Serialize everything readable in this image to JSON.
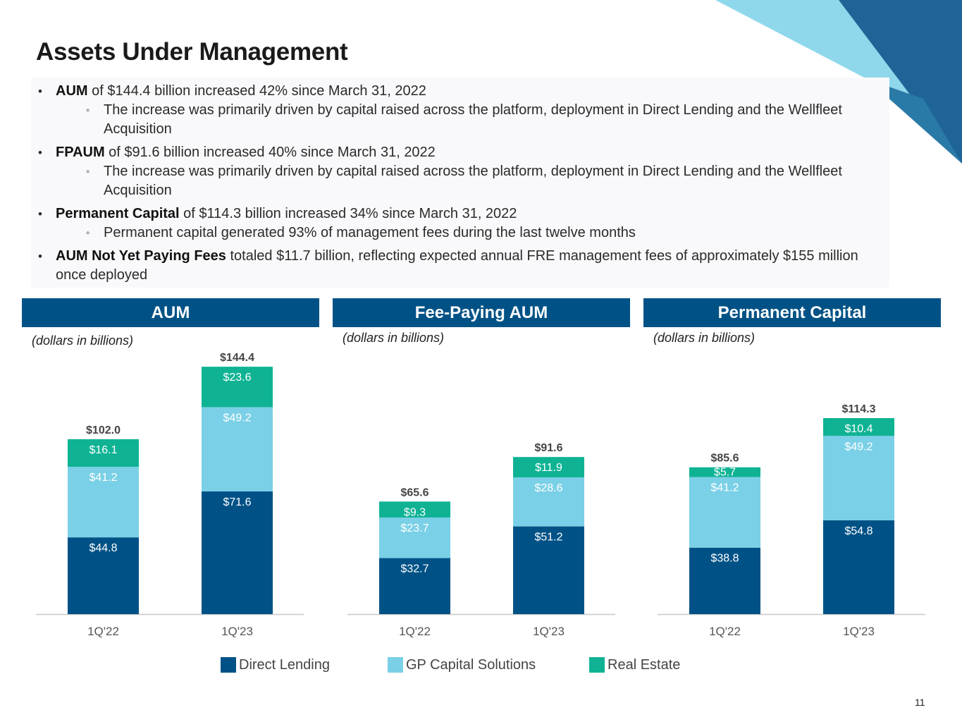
{
  "title": "Assets Under Management",
  "bullets": [
    {
      "bold": "AUM",
      "text": " of $144.4 billion increased 42% since March 31, 2022",
      "subs": [
        "The increase was primarily driven by capital raised across the platform,  deployment in Direct Lending and the Wellfleet Acquisition"
      ]
    },
    {
      "bold": "FPAUM",
      "text": " of $91.6 billion increased 40% since March 31, 2022",
      "subs": [
        "The increase was primarily driven by capital raised across the platform,  deployment in Direct Lending and the Wellfleet Acquisition"
      ]
    },
    {
      "bold": "Permanent Capital",
      "text": " of $114.3 billion increased 34% since March 31, 2022",
      "subs": [
        "Permanent capital generated 93% of management fees during the last twelve months"
      ]
    },
    {
      "bold": "AUM Not Yet Paying Fees",
      "text": " totaled $11.7 billion, reflecting expected annual FRE management fees of approximately $155 million once deployed",
      "subs": []
    }
  ],
  "panels": [
    {
      "header": "AUM",
      "units": "(dollars in billions)"
    },
    {
      "header": "Fee-Paying AUM",
      "units": "(dollars in billions)"
    },
    {
      "header": "Permanent Capital",
      "units": "(dollars in billions)"
    }
  ],
  "colors": {
    "direct_lending": "#005286",
    "gp_capital_solutions": "#7ad0e6",
    "real_estate": "#0fb394",
    "header": "#005286"
  },
  "chart_data": [
    {
      "type": "bar",
      "stacked": true,
      "title": "AUM",
      "ylabel": "(dollars in billions)",
      "categories": [
        "1Q'22",
        "1Q'23"
      ],
      "series": [
        {
          "name": "Direct Lending",
          "values": [
            44.8,
            71.6
          ],
          "labels": [
            "$44.8",
            "$71.6"
          ]
        },
        {
          "name": "GP Capital Solutions",
          "values": [
            41.2,
            49.2
          ],
          "labels": [
            "$41.2",
            "$49.2"
          ]
        },
        {
          "name": "Real Estate",
          "values": [
            16.1,
            23.6
          ],
          "labels": [
            "$16.1",
            "$23.6"
          ]
        }
      ],
      "totals": [
        102.0,
        144.4
      ],
      "total_labels": [
        "$102.0",
        "$144.4"
      ]
    },
    {
      "type": "bar",
      "stacked": true,
      "title": "Fee-Paying AUM",
      "ylabel": "(dollars in billions)",
      "categories": [
        "1Q'22",
        "1Q'23"
      ],
      "series": [
        {
          "name": "Direct Lending",
          "values": [
            32.7,
            51.2
          ],
          "labels": [
            "$32.7",
            "$51.2"
          ]
        },
        {
          "name": "GP Capital Solutions",
          "values": [
            23.7,
            28.6
          ],
          "labels": [
            "$23.7",
            "$28.6"
          ]
        },
        {
          "name": "Real Estate",
          "values": [
            9.3,
            11.9
          ],
          "labels": [
            "$9.3",
            "$11.9"
          ]
        }
      ],
      "totals": [
        65.6,
        91.6
      ],
      "total_labels": [
        "$65.6",
        "$91.6"
      ]
    },
    {
      "type": "bar",
      "stacked": true,
      "title": "Permanent Capital",
      "ylabel": "(dollars in billions)",
      "categories": [
        "1Q'22",
        "1Q'23"
      ],
      "series": [
        {
          "name": "Direct Lending",
          "values": [
            38.8,
            54.8
          ],
          "labels": [
            "$38.8",
            "$54.8"
          ]
        },
        {
          "name": "GP Capital Solutions",
          "values": [
            41.2,
            49.2
          ],
          "labels": [
            "$41.2",
            "$49.2"
          ]
        },
        {
          "name": "Real Estate",
          "values": [
            5.7,
            10.4
          ],
          "labels": [
            "$5.7",
            "$10.4"
          ]
        }
      ],
      "totals": [
        85.6,
        114.3
      ],
      "total_labels": [
        "$85.6",
        "$114.3"
      ]
    }
  ],
  "legend": [
    {
      "label": "Direct Lending",
      "color": "#005286"
    },
    {
      "label": "GP Capital Solutions",
      "color": "#7ad0e6"
    },
    {
      "label": "Real Estate",
      "color": "#0fb394"
    }
  ],
  "page_number": "11"
}
